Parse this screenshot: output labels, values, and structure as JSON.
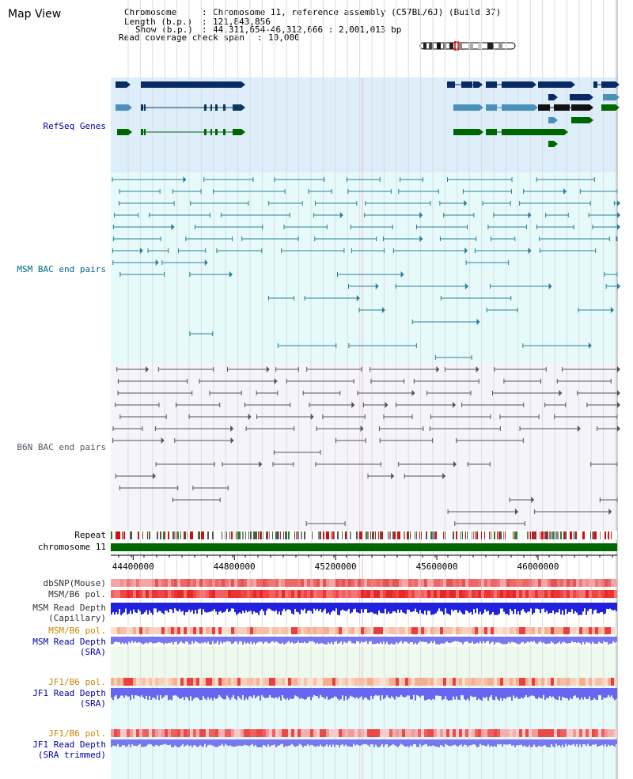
{
  "page_title": "Map View",
  "info": {
    "chromosome_label": "Chromosome",
    "chromosome_value": "Chromosome 11, reference assembly (C57BL/6J) (Build 37)",
    "length_label": "Length (b.p.)",
    "length_value": "121,843,856",
    "show_label": "Show (b.p.)",
    "show_value": "44,311,654-46,312,666 : 2,001,013 bp",
    "coverage_label": "Read coverage check span",
    "coverage_value": "10,000"
  },
  "tracks": {
    "refseq": "RefSeq Genes",
    "msm_bac": "MSM BAC end pairs",
    "b6n_bac": "B6N BAC end pairs",
    "repeat": "Repeat",
    "chromosome": "chromosome 11",
    "dbsnp": "dbSNP(Mouse)",
    "msm_b6_pol_1": "MSM/B6 pol.",
    "msm_read_depth_cap_1": "MSM Read Depth",
    "msm_read_depth_cap_2": "(Capillary)",
    "msm_b6_pol_2": "MSM/B6 pol.",
    "msm_read_depth_sra_1": "MSM Read Depth",
    "msm_read_depth_sra_2": "(SRA)",
    "jf1_b6_pol_1": "JF1/B6 pol.",
    "jf1_read_depth_sra_1": "JF1 Read Depth",
    "jf1_read_depth_sra_2": "(SRA)",
    "jf1_b6_pol_2": "JF1/B6 pol.",
    "jf1_read_depth_trim_1": "JF1 Read Depth",
    "jf1_read_depth_trim_2": "(SRA trimmed)"
  },
  "axis": {
    "ticks": [
      "44400000",
      "44800000",
      "45200000",
      "45600000",
      "46000000"
    ],
    "tick_positions_bp": [
      44400000,
      44800000,
      45200000,
      45600000,
      46000000
    ],
    "start_bp": 44311654,
    "end_bp": 46312666
  },
  "colors": {
    "refseq_label": "#0000aa",
    "msm_label": "#006688",
    "b6n_label": "#555566",
    "pol_label": "#cc8800",
    "depth_label": "#0000aa",
    "refseq_bg": "#ddeefa",
    "msm_bg": "#e6fafa",
    "b6n_bg": "#f4f4fa",
    "chromosome_bar": "#006600",
    "gene_dark": "#0a2a66",
    "gene_mid": "#4a90b8",
    "gene_green": "#006600",
    "msm_pair": "#2a7d99",
    "b6n_pair": "#555555",
    "depth_blue": "#2222dd",
    "depth_light_blue": "#7777ee"
  }
}
